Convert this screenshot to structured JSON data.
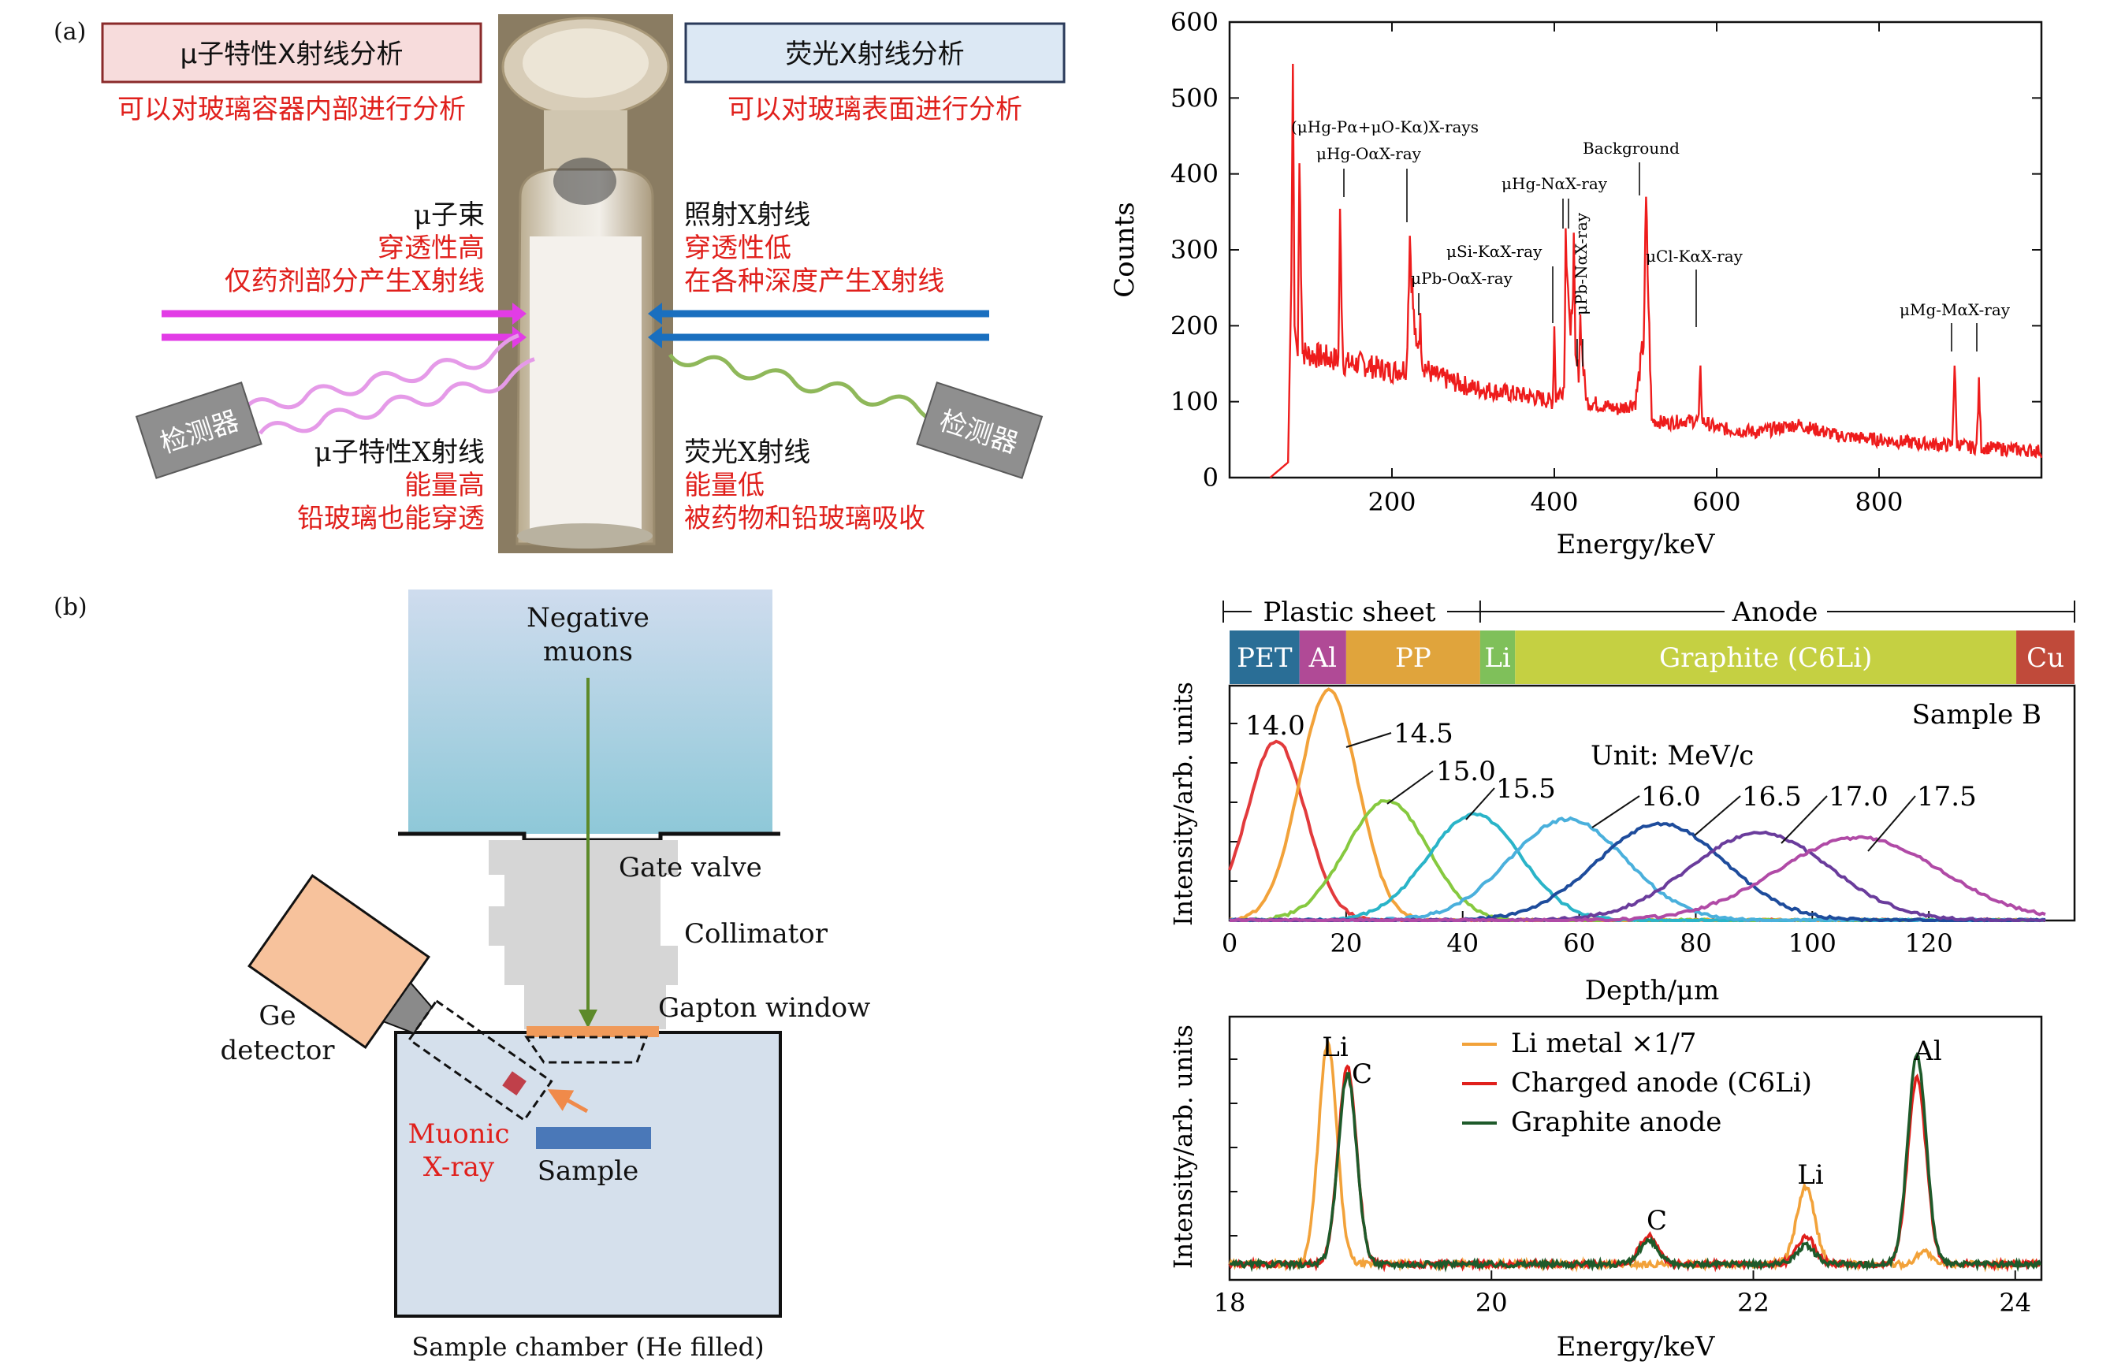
{
  "panel_a": {
    "label": "(a)",
    "box_left": "μ子特性X射线分析",
    "box_right": "荧光X射线分析",
    "sub_left": "可以对玻璃容器内部进行分析",
    "sub_right": "可以对玻璃表面进行分析",
    "muon_beam": [
      "μ子束",
      "穿透性高",
      "仅药剂部分产生X射线"
    ],
    "xray_beam": [
      "照射X射线",
      "穿透性低",
      "在各种深度产生X射线"
    ],
    "muon_xray": [
      "μ子特性X射线",
      "能量高",
      "铅玻璃也能穿透"
    ],
    "fluor_xray": [
      "荧光X射线",
      "能量低",
      "被药物和铅玻璃吸收"
    ],
    "detector_label": "检测器",
    "colors": {
      "magenta": "#e23ce6",
      "blue": "#1a6fbf",
      "red": "#e0201c"
    }
  },
  "panel_b": {
    "label": "(b)",
    "source": [
      "Negative",
      "muons"
    ],
    "gate_valve": "Gate valve",
    "collimator": "Collimator",
    "window": "Gapton window",
    "detector": [
      "Ge",
      "detector"
    ],
    "muonic": [
      "Muonic",
      "X-ray"
    ],
    "sample": "Sample",
    "chamber": "Sample chamber (He filled)"
  },
  "chart_data": [
    {
      "type": "line",
      "xlabel": "Energy/keV",
      "ylabel": "Counts",
      "xlim": [
        0,
        1000
      ],
      "ylim": [
        0,
        600
      ],
      "xticks": [
        200,
        400,
        600,
        800
      ],
      "yticks": [
        0,
        100,
        200,
        300,
        400,
        500,
        600
      ],
      "series": [
        {
          "x": [
            50,
            72,
            76,
            78,
            80,
            84,
            86,
            90,
            100,
            120,
            134,
            136,
            140,
            160,
            180,
            200,
            218,
            222,
            226,
            230,
            235,
            238,
            250,
            280,
            300,
            320,
            350,
            380,
            398,
            400,
            402,
            412,
            414,
            416,
            420,
            424,
            426,
            430,
            432,
            436,
            440,
            460,
            480,
            500,
            510,
            513,
            516,
            520,
            540,
            560,
            578,
            580,
            582,
            600,
            650,
            700,
            750,
            800,
            850,
            880,
            890,
            893,
            896,
            910,
            920,
            923,
            926,
            950,
            1000
          ],
          "values": [
            0,
            20,
            260,
            545,
            200,
            160,
            415,
            165,
            162,
            158,
            155,
            335,
            150,
            150,
            145,
            140,
            145,
            320,
            225,
            165,
            200,
            150,
            135,
            125,
            118,
            115,
            110,
            105,
            100,
            200,
            105,
            120,
            320,
            290,
            170,
            300,
            150,
            140,
            210,
            140,
            100,
            95,
            90,
            100,
            180,
            355,
            230,
            75,
            72,
            75,
            75,
            157,
            75,
            65,
            60,
            70,
            55,
            50,
            45,
            43,
            43,
            150,
            45,
            40,
            40,
            120,
            40,
            38,
            35
          ]
        }
      ],
      "annotations": [
        "(μHg-Pα+μO-Kα)X-rays",
        "μHg-OαX-ray",
        "μHg-NαX-ray",
        "Background",
        "μSi-KαX-ray",
        "μPb-NαX-ray",
        "μPb-OαX-ray",
        "μCl-KαX-ray",
        "μMg-MαX-ray"
      ]
    },
    {
      "type": "line",
      "xlabel": "Depth/μm",
      "ylabel": "Intensity/arb. units",
      "xlim": [
        0,
        140
      ],
      "xticks": [
        0,
        20,
        40,
        60,
        80,
        100,
        120
      ],
      "layers": [
        {
          "name": "PET",
          "start": 0,
          "end": 12,
          "color": "#2a6e96"
        },
        {
          "name": "Al",
          "start": 12,
          "end": 20,
          "color": "#b04a96"
        },
        {
          "name": "PP",
          "start": 20,
          "end": 43,
          "color": "#e0a43c"
        },
        {
          "name": "Li",
          "start": 43,
          "end": 49,
          "color": "#7fc05a"
        },
        {
          "name": "Graphite (C6Li)",
          "start": 49,
          "end": 135,
          "color": "#c5d042"
        },
        {
          "name": "Cu",
          "start": 135,
          "end": 146,
          "color": "#c04a3a"
        }
      ],
      "brackets": [
        "Plastic sheet",
        "Anode"
      ],
      "sample": "Sample B",
      "unit_note": "Unit: MeV/c",
      "series": [
        {
          "name": "14.0",
          "color": "#e23a3c",
          "center": 8,
          "width": 5,
          "peak": 0.78
        },
        {
          "name": "14.5",
          "color": "#f2a23a",
          "center": 17,
          "width": 5,
          "peak": 1.0
        },
        {
          "name": "15.0",
          "color": "#86c93f",
          "center": 27,
          "width": 7,
          "peak": 0.52
        },
        {
          "name": "15.5",
          "color": "#2ab4c8",
          "center": 42,
          "width": 8,
          "peak": 0.46
        },
        {
          "name": "16.0",
          "color": "#4ab0dc",
          "center": 58,
          "width": 10,
          "peak": 0.44
        },
        {
          "name": "16.5",
          "color": "#1e4c9c",
          "center": 74,
          "width": 11,
          "peak": 0.42
        },
        {
          "name": "17.0",
          "color": "#6a3c9c",
          "center": 91,
          "width": 12,
          "peak": 0.38
        },
        {
          "name": "17.5",
          "color": "#b04aa6",
          "center": 108,
          "width": 14,
          "peak": 0.36
        }
      ]
    },
    {
      "type": "line",
      "xlabel": "Energy/keV",
      "ylabel": "Intensity/arb. units",
      "xlim": [
        18,
        24.2
      ],
      "xticks": [
        18,
        20,
        22,
        24
      ],
      "peak_labels": [
        "Li",
        "C",
        "C",
        "Li",
        "Al"
      ],
      "series": [
        {
          "name": "Li metal ×1/7",
          "color": "#f2a23a",
          "peaks": [
            [
              18.75,
              0.95,
              0.07
            ],
            [
              22.4,
              0.33,
              0.07
            ],
            [
              23.3,
              0.06,
              0.05
            ]
          ]
        },
        {
          "name": "Charged anode (C6Li)",
          "color": "#e0201c",
          "peaks": [
            [
              18.9,
              0.85,
              0.07
            ],
            [
              21.2,
              0.12,
              0.07
            ],
            [
              22.4,
              0.12,
              0.07
            ],
            [
              23.25,
              0.8,
              0.07
            ]
          ]
        },
        {
          "name": "Graphite anode",
          "color": "#1e5a2a",
          "peaks": [
            [
              18.9,
              0.82,
              0.07
            ],
            [
              21.2,
              0.1,
              0.07
            ],
            [
              22.4,
              0.08,
              0.07
            ],
            [
              23.25,
              0.9,
              0.07
            ]
          ]
        }
      ]
    }
  ]
}
